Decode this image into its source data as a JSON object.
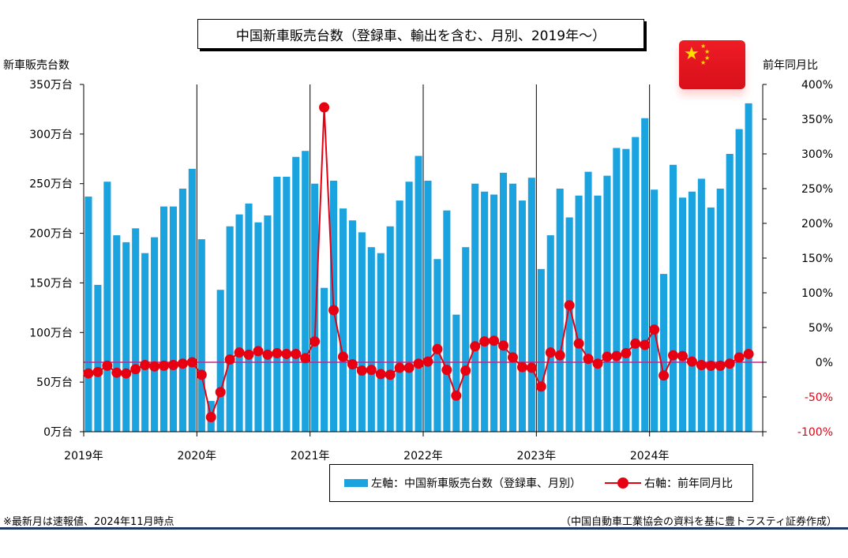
{
  "title": "中国新車販売台数（登録車、輸出を含む、月別、2019年～）",
  "left_axis_title": "新車販売台数",
  "right_axis_title": "前年同月比",
  "flag_icon": "china-flag-icon",
  "legend": {
    "bar_label": "左軸：中国新車販売台数（登録車、月別）",
    "line_label": "右軸：前年同月比"
  },
  "footnote_left": "※最新月は速報値、2024年11月時点",
  "footnote_right": "（中国自動車工業協会の資料を基に豊トラスティ証券作成）",
  "colors": {
    "bar": "#1ba3e0",
    "line": "#e60012",
    "zero_line": "#cc2288",
    "divider": "#000000"
  },
  "chart_data": {
    "type": "bar+line",
    "title": "中国新車販売台数（登録車、輸出を含む、月別、2019年～）",
    "year_labels": [
      "2019年",
      "2020年",
      "2021年",
      "2022年",
      "2023年",
      "2024年"
    ],
    "left_axis": {
      "label": "新車販売台数",
      "unit": "万台",
      "ylim": [
        0,
        350
      ],
      "ticks": [
        "0万台",
        "50万台",
        "100万台",
        "150万台",
        "200万台",
        "250万台",
        "300万台",
        "350万台"
      ]
    },
    "right_axis": {
      "label": "前年同月比",
      "unit": "%",
      "ylim": [
        -100,
        400
      ],
      "ticks": [
        "-100%",
        "-50%",
        "0%",
        "50%",
        "100%",
        "150%",
        "200%",
        "250%",
        "300%",
        "350%",
        "400%"
      ]
    },
    "series": [
      {
        "name": "左軸：中国新車販売台数（登録車、月別）",
        "type": "bar",
        "axis": "left",
        "values": [
          237,
          148,
          252,
          198,
          191,
          205,
          180,
          196,
          227,
          227,
          245,
          265,
          194,
          31,
          143,
          207,
          219,
          230,
          211,
          218,
          257,
          257,
          277,
          283,
          250,
          145,
          253,
          225,
          213,
          201,
          186,
          180,
          207,
          233,
          252,
          278,
          253,
          174,
          223,
          118,
          186,
          250,
          242,
          239,
          261,
          250,
          233,
          256,
          164,
          198,
          245,
          216,
          238,
          262,
          238,
          258,
          286,
          285,
          297,
          316,
          244,
          159,
          269,
          236,
          242,
          255,
          226,
          245,
          280,
          305,
          331
        ]
      },
      {
        "name": "右軸：前年同月比",
        "type": "line",
        "axis": "right",
        "values": [
          -16,
          -14,
          -5,
          -15,
          -16,
          -10,
          -4,
          -6,
          -5,
          -4,
          -2,
          0,
          -18,
          -79,
          -43,
          4,
          14,
          11,
          16,
          11,
          13,
          12,
          12,
          6,
          30,
          367,
          75,
          8,
          -3,
          -12,
          -11,
          -17,
          -18,
          -8,
          -8,
          -2,
          1,
          19,
          -11,
          -48,
          -12,
          23,
          30,
          31,
          24,
          7,
          -7,
          -8,
          -35,
          14,
          10,
          82,
          27,
          5,
          -2,
          8,
          9,
          13,
          27,
          25,
          47,
          -19,
          10,
          9,
          1,
          -4,
          -5,
          -5,
          -2,
          7,
          12
        ]
      }
    ]
  }
}
